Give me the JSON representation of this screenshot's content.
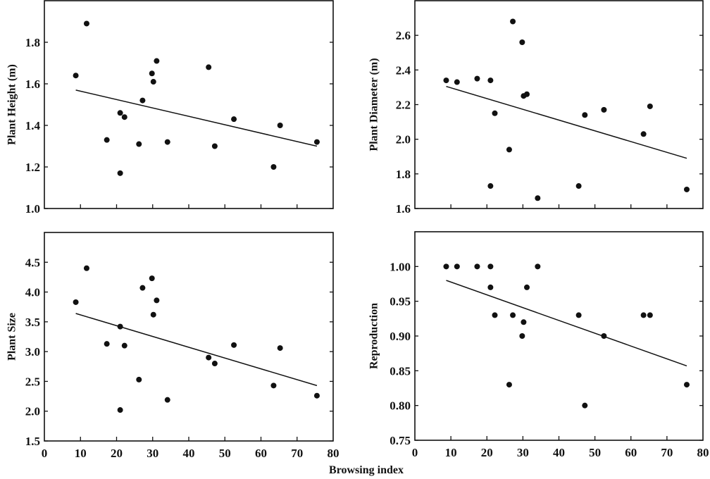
{
  "chart_data": [
    {
      "type": "scatter",
      "ylabel": "Plant Height (m)",
      "xlabel": "",
      "xlim": [
        0,
        80
      ],
      "ylim": [
        1.0,
        2.0
      ],
      "yticks": [
        "1.0",
        "1.2",
        "1.4",
        "1.6",
        "1.8"
      ],
      "xticks": [],
      "x": [
        8.7,
        11.7,
        17.3,
        21.0,
        21.0,
        22.2,
        26.2,
        27.2,
        29.8,
        30.2,
        31.1,
        34.1,
        45.5,
        47.2,
        52.5,
        63.5,
        65.3,
        75.5
      ],
      "y": [
        1.64,
        1.89,
        1.33,
        1.46,
        1.17,
        1.44,
        1.31,
        1.52,
        1.65,
        1.61,
        1.71,
        1.32,
        1.68,
        1.3,
        1.43,
        1.2,
        1.4,
        1.32
      ],
      "trend": [
        [
          8.7,
          1.57
        ],
        [
          75.5,
          1.3
        ]
      ],
      "grid": false
    },
    {
      "type": "scatter",
      "ylabel": "Plant Diameter (m)",
      "xlabel": "",
      "xlim": [
        0,
        80
      ],
      "ylim": [
        1.6,
        2.8
      ],
      "yticks": [
        "1.6",
        "1.8",
        "2.0",
        "2.2",
        "2.4",
        "2.6"
      ],
      "xticks": [],
      "x": [
        8.7,
        11.7,
        17.3,
        21.0,
        21.0,
        22.2,
        26.2,
        27.2,
        29.8,
        30.2,
        31.1,
        34.1,
        45.5,
        47.2,
        52.5,
        63.5,
        65.3,
        75.5
      ],
      "y": [
        2.34,
        2.33,
        2.35,
        2.34,
        1.73,
        2.15,
        1.94,
        2.68,
        2.56,
        2.25,
        2.26,
        1.66,
        1.73,
        2.14,
        2.17,
        2.03,
        2.19,
        1.71
      ],
      "trend": [
        [
          8.7,
          2.305
        ],
        [
          75.5,
          1.89
        ]
      ],
      "grid": false
    },
    {
      "type": "scatter",
      "ylabel": "Plant Size",
      "xlabel": "",
      "xlim": [
        0,
        80
      ],
      "ylim": [
        1.5,
        5.0
      ],
      "yticks": [
        "1.5",
        "2.0",
        "2.5",
        "3.0",
        "3.5",
        "4.0",
        "4.5"
      ],
      "xticks": [
        "0",
        "10",
        "20",
        "30",
        "40",
        "50",
        "60",
        "70",
        "80"
      ],
      "x": [
        8.7,
        11.7,
        17.3,
        21.0,
        21.0,
        22.2,
        26.2,
        27.2,
        29.8,
        30.2,
        31.1,
        34.1,
        45.5,
        47.2,
        52.5,
        63.5,
        65.3,
        75.5
      ],
      "y": [
        3.83,
        4.4,
        3.13,
        3.42,
        2.02,
        3.1,
        2.53,
        4.07,
        4.23,
        3.62,
        3.86,
        2.19,
        2.9,
        2.8,
        3.11,
        2.43,
        3.06,
        2.26
      ],
      "trend": [
        [
          8.7,
          3.64
        ],
        [
          75.5,
          2.43
        ]
      ],
      "grid": false
    },
    {
      "type": "scatter",
      "ylabel": "Reproduction",
      "xlabel": "",
      "xlim": [
        0,
        80
      ],
      "ylim": [
        0.75,
        1.05
      ],
      "yticks": [
        "0.75",
        "0.80",
        "0.85",
        "0.90",
        "0.95",
        "1.00"
      ],
      "xticks": [
        "0",
        "10",
        "20",
        "30",
        "40",
        "50",
        "60",
        "70",
        "80"
      ],
      "x": [
        8.7,
        11.7,
        17.3,
        21.0,
        21.0,
        22.2,
        26.2,
        27.2,
        29.8,
        30.2,
        31.1,
        34.1,
        45.5,
        47.2,
        52.5,
        63.5,
        65.3,
        75.5
      ],
      "y": [
        1.0,
        1.0,
        1.0,
        1.0,
        0.97,
        0.93,
        0.83,
        0.93,
        0.9,
        0.92,
        0.97,
        1.0,
        0.93,
        0.8,
        0.9,
        0.93,
        0.93,
        0.83
      ],
      "trend": [
        [
          8.7,
          0.98
        ],
        [
          75.5,
          0.857
        ]
      ],
      "grid": false
    }
  ],
  "shared_xlabel": "Browsing index"
}
